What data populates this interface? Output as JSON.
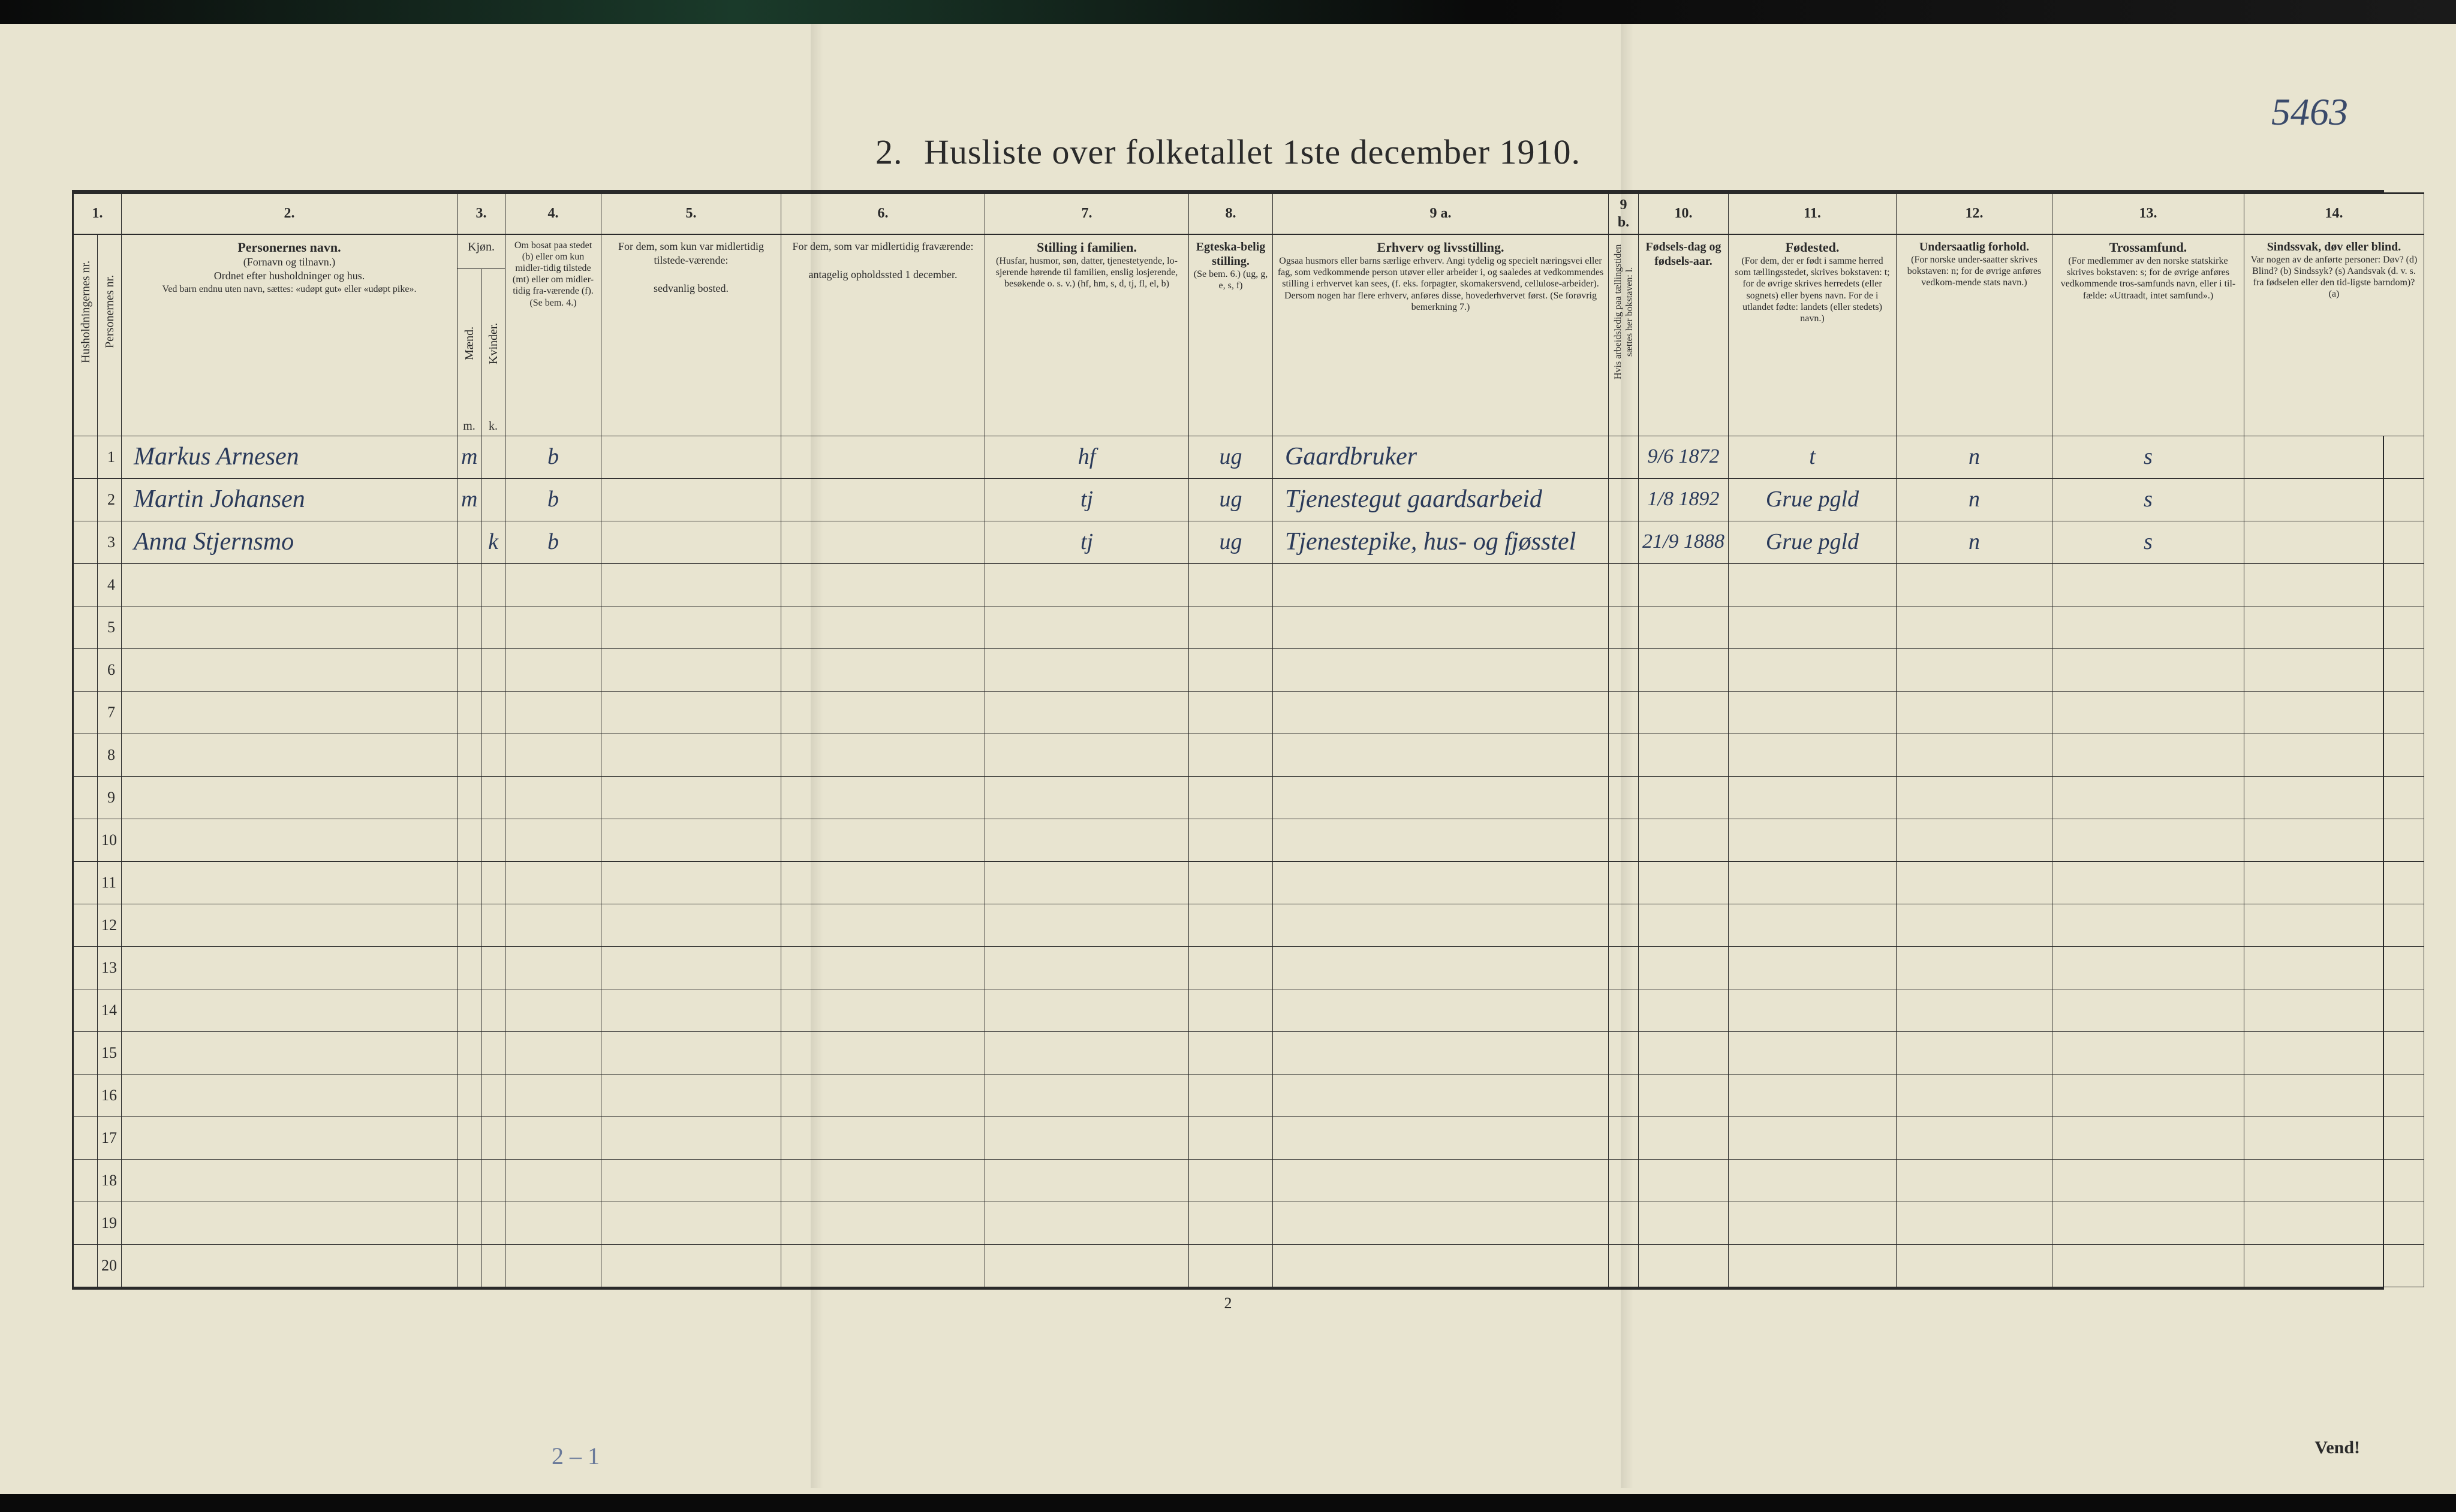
{
  "annotation_topright": "5463",
  "title_num": "2.",
  "title_text": "Husliste over folketallet 1ste december 1910.",
  "col_nums": [
    "1.",
    "2.",
    "3.",
    "4.",
    "5.",
    "6.",
    "7.",
    "8.",
    "9 a.",
    "9 b.",
    "10.",
    "11.",
    "12.",
    "13.",
    "14."
  ],
  "headers": {
    "hh": "Husholdningernes nr.",
    "pn": "Personernes nr.",
    "name_bold": "Personernes navn.",
    "name_sub1": "(Fornavn og tilnavn.)",
    "name_sub2": "Ordnet efter husholdninger og hus.",
    "name_sub3": "Ved barn endnu uten navn, sættes: «udøpt gut» eller «udøpt pike».",
    "kjon": "Kjøn.",
    "m": "Mænd.",
    "k": "Kvinder.",
    "mk": "m.",
    "kk": "k.",
    "bosat": "Om bosat paa stedet (b) eller om kun midler-tidig tilstede (mt) eller om midler-tidig fra-værende (f). (Se bem. 4.)",
    "bosted": "For dem, som kun var midlertidig tilstede-værende:",
    "bosted_sub": "sedvanlig bosted.",
    "frav": "For dem, som var midlertidig fraværende:",
    "frav_sub": "antagelig opholdssted 1 december.",
    "stilling_bold": "Stilling i familien.",
    "stilling_sub": "(Husfar, husmor, søn, datter, tjenestetyende, lo-sjerende hørende til familien, enslig losjerende, besøkende o. s. v.) (hf, hm, s, d, tj, fl, el, b)",
    "egte_bold": "Egteska-belig stilling.",
    "egte_sub": "(Se bem. 6.) (ug, g, e, s, f)",
    "erhverv_bold": "Erhverv og livsstilling.",
    "erhverv_sub": "Ogsaa husmors eller barns særlige erhverv. Angi tydelig og specielt næringsvei eller fag, som vedkommende person utøver eller arbeider i, og saaledes at vedkommendes stilling i erhvervet kan sees, (f. eks. forpagter, skomakersvend, cellulose-arbeider). Dersom nogen har flere erhverv, anføres disse, hovederhvervet først. (Se forøvrig bemerkning 7.)",
    "b9": "Hvis arbeidsledig paa tællingstiden sættes her bokstaven: l.",
    "fodsel_bold": "Fødsels-dag og fødsels-aar.",
    "fodested_bold": "Fødested.",
    "fodested_sub": "(For dem, der er født i samme herred som tællingsstedet, skrives bokstaven: t; for de øvrige skrives herredets (eller sognets) eller byens navn. For de i utlandet fødte: landets (eller stedets) navn.)",
    "under_bold": "Undersaatlig forhold.",
    "under_sub": "(For norske under-saatter skrives bokstaven: n; for de øvrige anføres vedkom-mende stats navn.)",
    "tros_bold": "Trossamfund.",
    "tros_sub": "(For medlemmer av den norske statskirke skrives bokstaven: s; for de øvrige anføres vedkommende tros-samfunds navn, eller i til-fælde: «Uttraadt, intet samfund».)",
    "sind_bold": "Sindssvak, døv eller blind.",
    "sind_sub": "Var nogen av de anførte personer: Døv? (d) Blind? (b) Sindssyk? (s) Aandsvak (d. v. s. fra fødselen eller den tid-ligste barndom)? (a)"
  },
  "rows": [
    {
      "num": "1",
      "name": "Markus Arnesen",
      "m": "m",
      "k": "",
      "bosat": "b",
      "stilling": "hf",
      "egte": "ug",
      "erhverv": "Gaardbruker",
      "fodsel": "9/6 1872",
      "fodested": "t",
      "under": "n",
      "tros": "s"
    },
    {
      "num": "2",
      "name": "Martin Johansen",
      "m": "m",
      "k": "",
      "bosat": "b",
      "stilling": "tj",
      "egte": "ug",
      "erhverv": "Tjenestegut gaardsarbeid",
      "fodsel": "1/8 1892",
      "fodested": "Grue pgld",
      "under": "n",
      "tros": "s"
    },
    {
      "num": "3",
      "name": "Anna Stjernsmo",
      "m": "",
      "k": "k",
      "bosat": "b",
      "stilling": "tj",
      "egte": "ug",
      "erhverv": "Tjenestepike, hus- og fjøsstel",
      "fodsel": "21/9 1888",
      "fodested": "Grue pgld",
      "under": "n",
      "tros": "s"
    }
  ],
  "empty_rows": [
    "4",
    "5",
    "6",
    "7",
    "8",
    "9",
    "10",
    "11",
    "12",
    "13",
    "14",
    "15",
    "16",
    "17",
    "18",
    "19",
    "20"
  ],
  "footer_pagenum": "2",
  "vend": "Vend!",
  "pencil_note": "2 – 1",
  "colors": {
    "paper": "#e8e4d0",
    "ink": "#2a2a2a",
    "hand_ink": "#2a3a5a",
    "pencil": "#6a7a9a"
  }
}
